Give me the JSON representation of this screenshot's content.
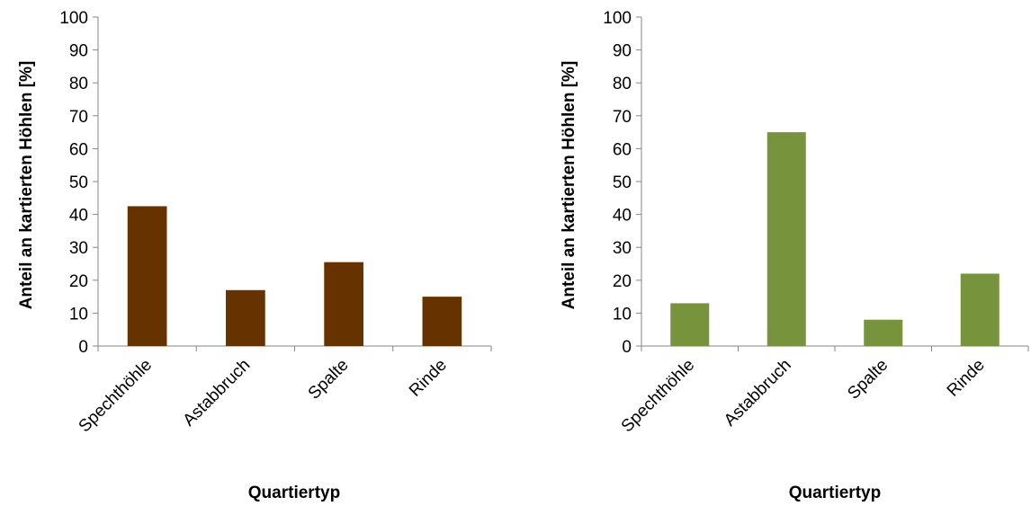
{
  "chart_data": [
    {
      "type": "bar",
      "categories": [
        "Spechthöhle",
        "Astabbruch",
        "Spalte",
        "Rinde"
      ],
      "values": [
        42.5,
        17,
        25.5,
        15
      ],
      "xlabel": "Quartiertyp",
      "ylabel": "Anteil an kartierten Höhlen [%]",
      "ylim": [
        0,
        100
      ],
      "yticks": [
        "0",
        "10",
        "20",
        "30",
        "40",
        "50",
        "60",
        "70",
        "80",
        "90",
        "100"
      ],
      "bar_color": "#663300",
      "grid": false
    },
    {
      "type": "bar",
      "categories": [
        "Spechthöhle",
        "Astabbruch",
        "Spalte",
        "Rinde"
      ],
      "values": [
        13,
        65,
        8,
        22
      ],
      "xlabel": "Quartiertyp",
      "ylabel": "Anteil an kartierten Höhlen [%]",
      "ylim": [
        0,
        100
      ],
      "yticks": [
        "0",
        "10",
        "20",
        "30",
        "40",
        "50",
        "60",
        "70",
        "80",
        "90",
        "100"
      ],
      "bar_color": "#77933C",
      "grid": false
    }
  ]
}
